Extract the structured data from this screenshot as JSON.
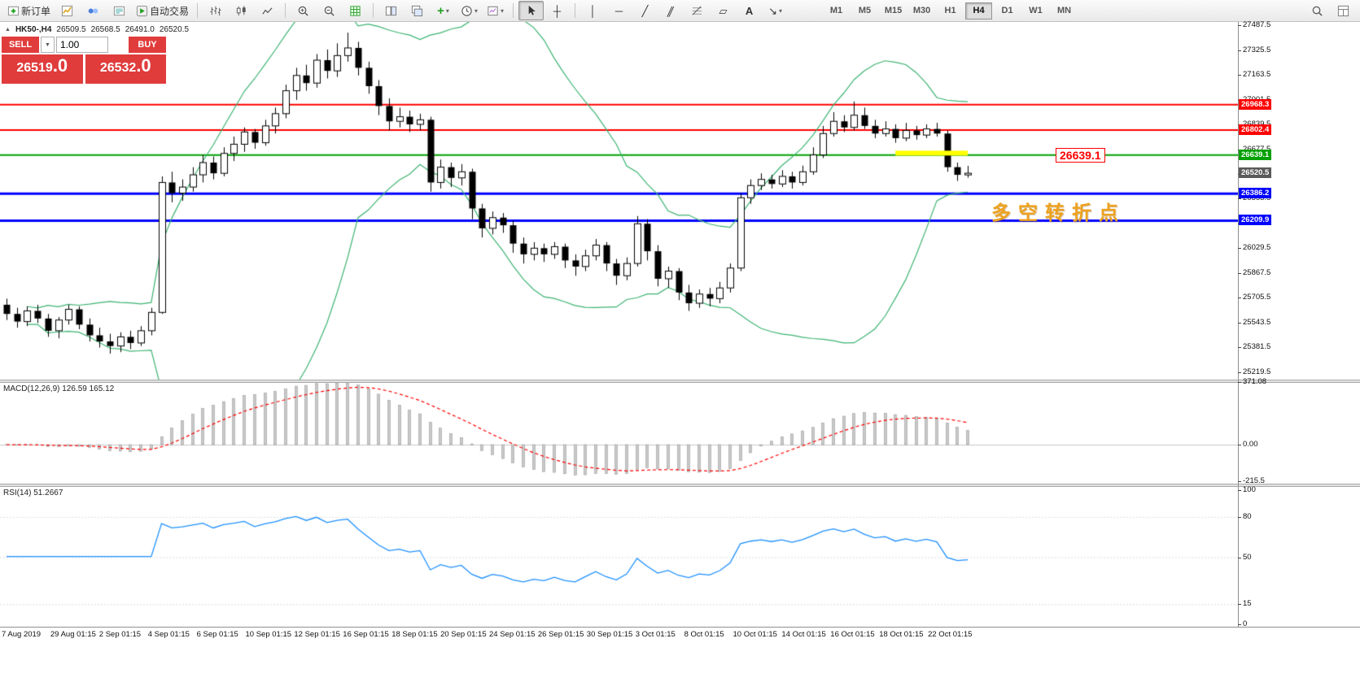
{
  "toolbar": {
    "new_order": "新订单",
    "autotrading": "自动交易",
    "timeframes": [
      "M1",
      "M5",
      "M15",
      "M30",
      "H1",
      "H4",
      "D1",
      "W1",
      "MN"
    ],
    "active_timeframe": "H4"
  },
  "symbol_bar": {
    "title": "HK50-,H4",
    "open": "26509.5",
    "high": "26568.5",
    "low": "26491.0",
    "close": "26520.5"
  },
  "trade_panel": {
    "sell": "SELL",
    "buy": "BUY",
    "volume": "1.00",
    "sell_price": "26519",
    "sell_frac": ".0",
    "buy_price": "26532",
    "buy_frac": ".0"
  },
  "price_axis": {
    "ticks": [
      "27487.5",
      "27325.5",
      "27163.5",
      "27001.5",
      "26839.5",
      "26677.5",
      "26515.5",
      "26353.5",
      "26191.5",
      "26029.5",
      "25867.5",
      "25705.5",
      "25543.5",
      "25381.5",
      "25219.5"
    ],
    "tags": [
      {
        "value": "26968.3",
        "color": "#FF0000"
      },
      {
        "value": "26802.4",
        "color": "#FF0000"
      },
      {
        "value": "26639.1",
        "color": "#00A000"
      },
      {
        "value": "26520.5",
        "color": "#5a5a5a"
      },
      {
        "value": "26386.2",
        "color": "#0000FF"
      },
      {
        "value": "26209.9",
        "color": "#0000FF"
      }
    ]
  },
  "macd_panel": {
    "label": "MACD(12,26,9) 126.59 165.12",
    "scale": [
      {
        "v": 371.08,
        "t": "371.08"
      },
      {
        "v": 0,
        "t": "0.00"
      },
      {
        "v": -215.5,
        "t": "-215.5"
      }
    ]
  },
  "rsi_panel": {
    "label": "RSI(14) 51.2667",
    "scale": [
      {
        "v": 100,
        "t": "100",
        "level": false
      },
      {
        "v": 80,
        "t": "80",
        "level": true
      },
      {
        "v": 50,
        "t": "50",
        "level": true
      },
      {
        "v": 15,
        "t": "15",
        "level": true
      },
      {
        "v": 0,
        "t": "0",
        "level": false
      }
    ]
  },
  "time_axis": {
    "labels": [
      "7 Aug 2019",
      "29 Aug 01:15",
      "2 Sep 01:15",
      "4 Sep 01:15",
      "6 Sep 01:15",
      "10 Sep 01:15",
      "12 Sep 01:15",
      "16 Sep 01:15",
      "18 Sep 01:15",
      "20 Sep 01:15",
      "24 Sep 01:15",
      "26 Sep 01:15",
      "30 Sep 01:15",
      "3 Oct 01:15",
      "8 Oct 01:15",
      "10 Oct 01:15",
      "14 Oct 01:15",
      "16 Oct 01:15",
      "18 Oct 01:15",
      "22 Oct 01:15"
    ]
  },
  "annotations": {
    "price_flag": "26639.1",
    "flag_color": "#FF0000",
    "note_cn": "多空转折点",
    "note_color": "#EDA21F"
  },
  "chart_data": {
    "type": "candlestick",
    "symbol": "HK50-",
    "timeframe": "H4",
    "ohlc": [
      [
        25660,
        25700,
        25560,
        25600
      ],
      [
        25600,
        25640,
        25510,
        25550
      ],
      [
        25550,
        25650,
        25520,
        25620
      ],
      [
        25620,
        25660,
        25540,
        25570
      ],
      [
        25570,
        25600,
        25450,
        25490
      ],
      [
        25490,
        25580,
        25440,
        25560
      ],
      [
        25560,
        25660,
        25530,
        25630
      ],
      [
        25630,
        25650,
        25500,
        25530
      ],
      [
        25530,
        25570,
        25420,
        25460
      ],
      [
        25460,
        25510,
        25380,
        25420
      ],
      [
        25420,
        25470,
        25340,
        25390
      ],
      [
        25390,
        25480,
        25350,
        25450
      ],
      [
        25450,
        25490,
        25370,
        25410
      ],
      [
        25410,
        25520,
        25390,
        25490
      ],
      [
        25490,
        25640,
        25460,
        25610
      ],
      [
        25610,
        26500,
        25600,
        26460
      ],
      [
        26460,
        26530,
        26330,
        26390
      ],
      [
        26390,
        26480,
        26340,
        26430
      ],
      [
        26430,
        26560,
        26400,
        26510
      ],
      [
        26510,
        26640,
        26460,
        26590
      ],
      [
        26590,
        26630,
        26480,
        26520
      ],
      [
        26520,
        26690,
        26500,
        26650
      ],
      [
        26650,
        26760,
        26600,
        26710
      ],
      [
        26710,
        26820,
        26660,
        26790
      ],
      [
        26790,
        26810,
        26680,
        26720
      ],
      [
        26720,
        26870,
        26700,
        26830
      ],
      [
        26830,
        26950,
        26780,
        26910
      ],
      [
        26910,
        27100,
        26880,
        27060
      ],
      [
        27060,
        27210,
        27000,
        27160
      ],
      [
        27160,
        27230,
        27060,
        27110
      ],
      [
        27110,
        27300,
        27080,
        27260
      ],
      [
        27260,
        27330,
        27140,
        27190
      ],
      [
        27190,
        27370,
        27150,
        27290
      ],
      [
        27290,
        27440,
        27250,
        27340
      ],
      [
        27340,
        27380,
        27160,
        27210
      ],
      [
        27210,
        27250,
        27040,
        27090
      ],
      [
        27090,
        27130,
        26900,
        26960
      ],
      [
        26960,
        27010,
        26800,
        26860
      ],
      [
        26860,
        26950,
        26820,
        26890
      ],
      [
        26890,
        26930,
        26790,
        26840
      ],
      [
        26840,
        26910,
        26800,
        26870
      ],
      [
        26870,
        26890,
        26400,
        26460
      ],
      [
        26460,
        26610,
        26420,
        26560
      ],
      [
        26560,
        26590,
        26430,
        26490
      ],
      [
        26490,
        26580,
        26440,
        26530
      ],
      [
        26530,
        26550,
        26220,
        26290
      ],
      [
        26290,
        26320,
        26100,
        26160
      ],
      [
        26160,
        26270,
        26120,
        26230
      ],
      [
        26230,
        26260,
        26130,
        26180
      ],
      [
        26180,
        26210,
        26000,
        26060
      ],
      [
        26060,
        26100,
        25930,
        25990
      ],
      [
        25990,
        26070,
        25950,
        26030
      ],
      [
        26030,
        26060,
        25940,
        25990
      ],
      [
        25990,
        26070,
        25960,
        26040
      ],
      [
        26040,
        26060,
        25900,
        25950
      ],
      [
        25950,
        25990,
        25850,
        25910
      ],
      [
        25910,
        26020,
        25880,
        25980
      ],
      [
        25980,
        26090,
        25950,
        26050
      ],
      [
        26050,
        26070,
        25880,
        25930
      ],
      [
        25930,
        25960,
        25790,
        25850
      ],
      [
        25850,
        25970,
        25820,
        25930
      ],
      [
        25930,
        26240,
        25910,
        26190
      ],
      [
        26190,
        26220,
        25950,
        26010
      ],
      [
        26010,
        26050,
        25780,
        25830
      ],
      [
        25830,
        25910,
        25770,
        25880
      ],
      [
        25880,
        25900,
        25690,
        25740
      ],
      [
        25740,
        25790,
        25620,
        25670
      ],
      [
        25670,
        25760,
        25640,
        25730
      ],
      [
        25730,
        25770,
        25650,
        25700
      ],
      [
        25700,
        25810,
        25670,
        25770
      ],
      [
        25770,
        25930,
        25740,
        25900
      ],
      [
        25900,
        26390,
        25880,
        26360
      ],
      [
        26360,
        26480,
        26320,
        26440
      ],
      [
        26440,
        26520,
        26410,
        26480
      ],
      [
        26480,
        26510,
        26420,
        26450
      ],
      [
        26450,
        26540,
        26430,
        26500
      ],
      [
        26500,
        26530,
        26420,
        26460
      ],
      [
        26460,
        26570,
        26440,
        26530
      ],
      [
        26530,
        26690,
        26510,
        26640
      ],
      [
        26640,
        26830,
        26620,
        26780
      ],
      [
        26780,
        26920,
        26760,
        26860
      ],
      [
        26860,
        26900,
        26790,
        26820
      ],
      [
        26820,
        26990,
        26800,
        26900
      ],
      [
        26900,
        26950,
        26810,
        26830
      ],
      [
        26830,
        26870,
        26750,
        26780
      ],
      [
        26780,
        26860,
        26760,
        26810
      ],
      [
        26810,
        26840,
        26720,
        26750
      ],
      [
        26750,
        26850,
        26730,
        26800
      ],
      [
        26800,
        26830,
        26740,
        26770
      ],
      [
        26770,
        26840,
        26750,
        26810
      ],
      [
        26810,
        26850,
        26760,
        26780
      ],
      [
        26780,
        26800,
        26530,
        26560
      ],
      [
        26560,
        26590,
        26470,
        26510
      ],
      [
        26509.5,
        26568.5,
        26491.0,
        26520.5
      ]
    ],
    "overlays": {
      "bollinger": {
        "period": 20,
        "deviation": 2,
        "color": "#3CB371"
      },
      "hlines": [
        {
          "price": 26968.3,
          "color": "#FF0000",
          "width": 2
        },
        {
          "price": 26802.4,
          "color": "#FF0000",
          "width": 2
        },
        {
          "price": 26639.1,
          "color": "#00A000",
          "width": 2
        },
        {
          "price": 26386.2,
          "color": "#0000FF",
          "width": 3
        },
        {
          "price": 26209.9,
          "color": "#0000FF",
          "width": 3
        }
      ],
      "yellow_segment": {
        "price": 26652,
        "from_bar": 86,
        "to_bar": 93,
        "color": "#FFFF00"
      },
      "current_price": 26520.5
    },
    "indicators": [
      {
        "type": "MACD",
        "params": [
          12,
          26,
          9
        ],
        "display": "MACD(12,26,9) 126.59 165.12",
        "histogram_color": "#c9c9c9",
        "signal_color": "#FF0000",
        "scale_max": 371.08,
        "scale_min": -215.5
      },
      {
        "type": "RSI",
        "params": [
          14
        ],
        "display": "RSI(14) 51.2667",
        "line_color": "#1E90FF",
        "scale": [
          100,
          80,
          50,
          15,
          0
        ],
        "current": 51.2667
      }
    ]
  }
}
